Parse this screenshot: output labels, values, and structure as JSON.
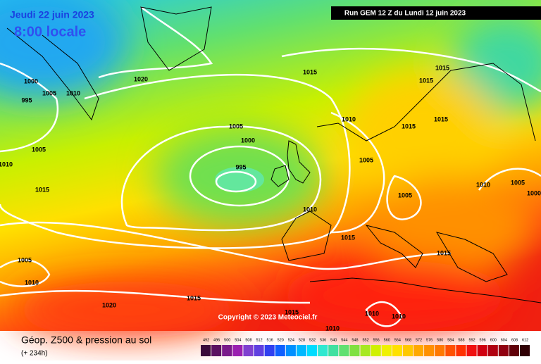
{
  "header": {
    "date": "Jeudi 22 juin 2023",
    "time": "8:00 locale",
    "run": "Run GEM 12 Z du Lundi 12 juin 2023"
  },
  "copyright": "Copyright © 2023 Meteociel.fr",
  "isobar_labels": [
    1000,
    1005,
    1010,
    995,
    1020,
    1015,
    1015,
    1015,
    1010,
    1015,
    1015,
    1005,
    1000,
    995,
    1005,
    1010,
    1015,
    1005,
    1005,
    1010,
    1005,
    1000,
    1010,
    1015,
    1015,
    1005,
    1010,
    1020,
    1015,
    1015,
    1010,
    1010,
    1010
  ],
  "footer": {
    "title": "Géop. Z500 & pression au sol",
    "lead": "(+ 234h)"
  },
  "legend": {
    "values": [
      492,
      496,
      500,
      504,
      508,
      512,
      516,
      520,
      524,
      528,
      532,
      536,
      540,
      544,
      548,
      552,
      556,
      560,
      564,
      568,
      572,
      576,
      580,
      584,
      588,
      592,
      596,
      600,
      604,
      608,
      612
    ],
    "colors": [
      "#3a0a3a",
      "#5a1060",
      "#7a1a8a",
      "#9a20b0",
      "#8040d0",
      "#6040e0",
      "#3040f0",
      "#1060ff",
      "#0090ff",
      "#00b8ff",
      "#00dcff",
      "#30e8d0",
      "#40e0a0",
      "#60e070",
      "#80e040",
      "#a8e820",
      "#d0f000",
      "#f0f000",
      "#ffe000",
      "#ffc800",
      "#ffa800",
      "#ff9000",
      "#ff7800",
      "#ff5000",
      "#ff3000",
      "#f01010",
      "#d00010",
      "#b00010",
      "#900010",
      "#600008",
      "#300004"
    ]
  }
}
